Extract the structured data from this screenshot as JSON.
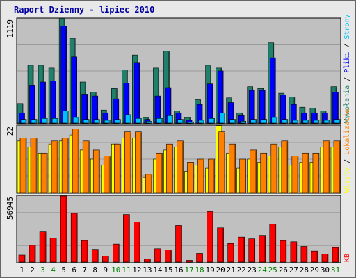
{
  "title": "Raport Dzienny -  lipiec 2010",
  "colors": {
    "hits": "#21806b",
    "files": "#0000ff",
    "pages": "#00c0ff",
    "visits": "#ffff00",
    "sites": "#ff8000",
    "kbytes": "#ff0000",
    "weekday": "#000000",
    "weekend": "#008000",
    "panel_bg": "#c0c0c0",
    "frame_bg": "#e8e8e8"
  },
  "right_labels": {
    "top": [
      {
        "text": "Wywołania",
        "color": "#21806b"
      },
      {
        "text": "Pliki",
        "color": "#0000ff"
      },
      {
        "text": "Strony",
        "color": "#00c0ff"
      }
    ],
    "middle": [
      {
        "text": "Wizyty",
        "color": "#ffff00"
      },
      {
        "text": "Lokalizacje",
        "color": "#ff8000"
      }
    ],
    "bottom": [
      {
        "text": "KB",
        "color": "#ff0000"
      }
    ],
    "separator": " / "
  },
  "chart_data": [
    {
      "type": "bar",
      "name": "top-panel",
      "ymax_label": "1119",
      "ylim": [
        0,
        1119
      ],
      "x": [
        "1",
        "2",
        "3",
        "4",
        "5",
        "6",
        "7",
        "8",
        "9",
        "10",
        "11",
        "12",
        "13",
        "14",
        "15",
        "16",
        "17",
        "18",
        "19",
        "20",
        "21",
        "22",
        "23",
        "24",
        "25",
        "26",
        "27",
        "28",
        "29",
        "30",
        "31"
      ],
      "series": [
        {
          "name": "Wywołania",
          "key": "hits",
          "values": [
            210,
            620,
            620,
            590,
            1119,
            910,
            440,
            330,
            140,
            370,
            570,
            730,
            60,
            590,
            770,
            130,
            60,
            250,
            620,
            590,
            270,
            110,
            390,
            370,
            860,
            320,
            280,
            170,
            160,
            130,
            390
          ]
        },
        {
          "name": "Pliki",
          "key": "files",
          "values": [
            110,
            400,
            440,
            450,
            1040,
            710,
            310,
            290,
            110,
            260,
            430,
            650,
            40,
            290,
            380,
            110,
            30,
            200,
            420,
            560,
            220,
            80,
            350,
            350,
            700,
            300,
            200,
            110,
            110,
            110,
            330
          ]
        },
        {
          "name": "Strony",
          "key": "pages",
          "values": [
            40,
            40,
            50,
            50,
            130,
            60,
            40,
            40,
            30,
            40,
            90,
            50,
            20,
            50,
            80,
            40,
            10,
            30,
            50,
            110,
            40,
            20,
            40,
            40,
            60,
            40,
            30,
            30,
            30,
            30,
            40
          ]
        }
      ]
    },
    {
      "type": "bar",
      "name": "middle-panel",
      "ymax_label": "22",
      "ylim": [
        0,
        22
      ],
      "x": [
        "1",
        "2",
        "3",
        "4",
        "5",
        "6",
        "7",
        "8",
        "9",
        "10",
        "11",
        "12",
        "13",
        "14",
        "15",
        "16",
        "17",
        "18",
        "19",
        "20",
        "21",
        "22",
        "23",
        "24",
        "25",
        "26",
        "27",
        "28",
        "29",
        "30",
        "31"
      ],
      "series": [
        {
          "name": "Wizyty",
          "key": "visits",
          "values": [
            17,
            15,
            13,
            16,
            17,
            19,
            14,
            11,
            9,
            16,
            18,
            18,
            5,
            11,
            14,
            15,
            7,
            9,
            8,
            22,
            13,
            8,
            11,
            10,
            12,
            15,
            9,
            10,
            10,
            15,
            15
          ]
        },
        {
          "name": "Lokalizacje",
          "key": "sites",
          "values": [
            18,
            18,
            13,
            17,
            18,
            21,
            17,
            14,
            12,
            16,
            20,
            20,
            6,
            13,
            16,
            17,
            10,
            11,
            11,
            20,
            16,
            11,
            14,
            13,
            16,
            17,
            12,
            13,
            13,
            17,
            17
          ]
        }
      ]
    },
    {
      "type": "bar",
      "name": "bottom-panel",
      "ymax_label": "56945",
      "ylim": [
        0,
        56945
      ],
      "x": [
        "1",
        "2",
        "3",
        "4",
        "5",
        "6",
        "7",
        "8",
        "9",
        "10",
        "11",
        "12",
        "13",
        "14",
        "15",
        "16",
        "17",
        "18",
        "19",
        "20",
        "21",
        "22",
        "23",
        "24",
        "25",
        "26",
        "27",
        "28",
        "29",
        "30",
        "31"
      ],
      "series": [
        {
          "name": "KB",
          "key": "kbytes",
          "values": [
            6000,
            14500,
            26000,
            20500,
            56945,
            42000,
            18500,
            11000,
            5000,
            15500,
            41000,
            34500,
            2500,
            11500,
            10500,
            31500,
            1500,
            7500,
            43500,
            29500,
            16000,
            21500,
            20000,
            23000,
            32500,
            18500,
            17500,
            13500,
            9500,
            7000,
            12500
          ]
        }
      ]
    }
  ],
  "day_labels": [
    {
      "text": "1",
      "weekend": false
    },
    {
      "text": "2",
      "weekend": false
    },
    {
      "text": "3",
      "weekend": true
    },
    {
      "text": "4",
      "weekend": true
    },
    {
      "text": "5",
      "weekend": false
    },
    {
      "text": "6",
      "weekend": false
    },
    {
      "text": "7",
      "weekend": false
    },
    {
      "text": "8",
      "weekend": false
    },
    {
      "text": "9",
      "weekend": false
    },
    {
      "text": "10",
      "weekend": true
    },
    {
      "text": "11",
      "weekend": true
    },
    {
      "text": "12",
      "weekend": false
    },
    {
      "text": "13",
      "weekend": false
    },
    {
      "text": "14",
      "weekend": false
    },
    {
      "text": "15",
      "weekend": false
    },
    {
      "text": "16",
      "weekend": false
    },
    {
      "text": "17",
      "weekend": true
    },
    {
      "text": "18",
      "weekend": true
    },
    {
      "text": "19",
      "weekend": false
    },
    {
      "text": "20",
      "weekend": false
    },
    {
      "text": "21",
      "weekend": false
    },
    {
      "text": "22",
      "weekend": false
    },
    {
      "text": "23",
      "weekend": false
    },
    {
      "text": "24",
      "weekend": true
    },
    {
      "text": "25",
      "weekend": true
    },
    {
      "text": "26",
      "weekend": false
    },
    {
      "text": "27",
      "weekend": false
    },
    {
      "text": "28",
      "weekend": false
    },
    {
      "text": "29",
      "weekend": false
    },
    {
      "text": "30",
      "weekend": false
    },
    {
      "text": "31",
      "weekend": true
    }
  ]
}
